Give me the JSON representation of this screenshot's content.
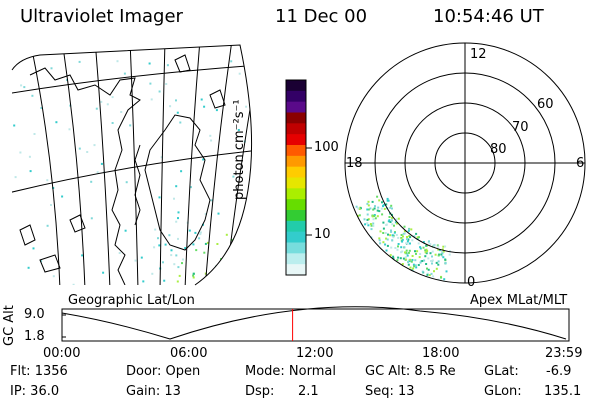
{
  "header": {
    "instrument": "Ultraviolet Imager",
    "date": "11 Dec 00",
    "time": "10:54:46 UT"
  },
  "colorbar": {
    "unit_label": "photon cm⁻²s⁻¹",
    "tick_labels": [
      "100",
      "10"
    ],
    "colors": [
      "#1a0033",
      "#330066",
      "#5a0a8a",
      "#8a0000",
      "#c00000",
      "#e60000",
      "#ff5a00",
      "#ff9900",
      "#ffcc00",
      "#e6e600",
      "#aaee00",
      "#66dd00",
      "#33cc33",
      "#22ccaa",
      "#33cccc",
      "#77dddd",
      "#bbeeee",
      "#e8f7f7"
    ]
  },
  "left_map": {
    "caption": "Geographic Lat/Lon"
  },
  "right_map": {
    "caption": "Apex MLat/MLT",
    "mlt_labels": [
      "12",
      "18",
      "6",
      "0"
    ],
    "lat_labels": [
      "60",
      "70",
      "80"
    ]
  },
  "timeline": {
    "ylabel": "GC Alt",
    "yticks": [
      "9.0",
      "1.8"
    ],
    "xticks": [
      "00:00",
      "06:00",
      "12:00",
      "18:00",
      "23:59"
    ],
    "marker_time_hours": 10.91,
    "marker_color": "#ff0000"
  },
  "info": {
    "flt": "Flt: 1356",
    "ip": "IP: 36.0",
    "door": "Door: Open",
    "gain": "Gain: 13",
    "mode": "Mode: Normal",
    "dsp_label": "Dsp:",
    "dsp_value": "2.1",
    "gc_alt": "GC Alt: 8.5 Re",
    "seq": "Seq: 13",
    "glat_label": "GLat:",
    "glat_value": "-6.9",
    "glon_label": "GLon:",
    "glon_value": "135.1"
  }
}
